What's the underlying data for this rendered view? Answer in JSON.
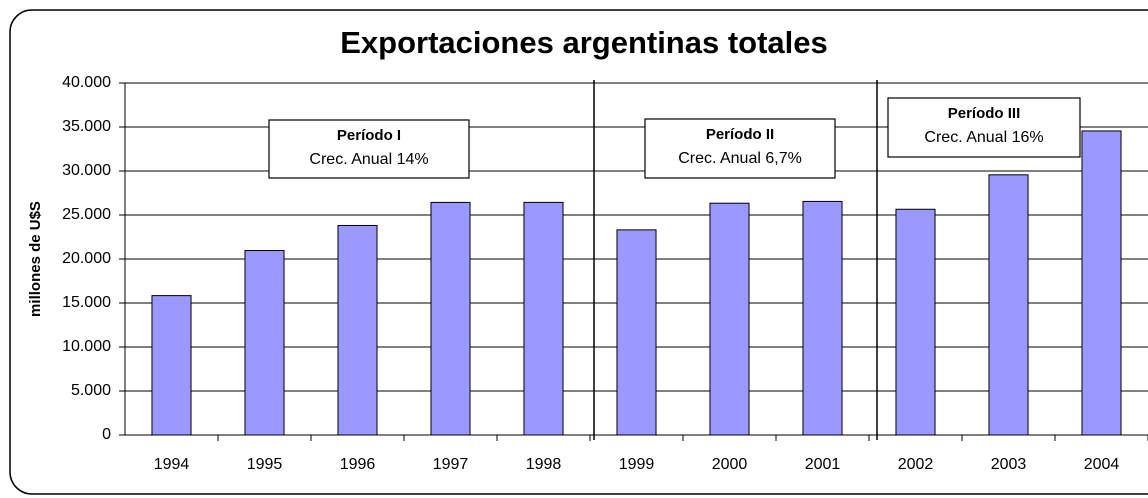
{
  "chart_data": {
    "type": "bar",
    "title": "Exportaciones argentinas totales",
    "y_label": "millones de U$S",
    "categories": [
      "1994",
      "1995",
      "1996",
      "1997",
      "1998",
      "1999",
      "2000",
      "2001",
      "2002",
      "2003",
      "2004"
    ],
    "values": [
      15839,
      20963,
      23811,
      26431,
      26434,
      23309,
      26341,
      26543,
      25651,
      29566,
      34550
    ],
    "color": "#9999ff",
    "ylim": [
      0,
      40000
    ],
    "yticks": [
      0,
      {
        "value": 5000,
        "label": "5.000"
      },
      {
        "value": 10000,
        "label": "10.000"
      },
      {
        "value": 15000,
        "label": "15.000"
      },
      {
        "value": 20000,
        "label": "20.000"
      },
      {
        "value": 25000,
        "label": "25.000"
      },
      {
        "value": 30000,
        "label": "30.000"
      },
      {
        "value": 35000,
        "label": "35.000"
      },
      {
        "value": 40000,
        "label": "40.000"
      }
    ],
    "grid": true,
    "annotations": [
      {
        "title": "Período I",
        "text": "Crec. Anual 14%"
      },
      {
        "title": "Período II",
        "text": "Crec. Anual 6,7%"
      },
      {
        "title": "Período III",
        "text": "Crec. Anual 16%"
      }
    ]
  }
}
